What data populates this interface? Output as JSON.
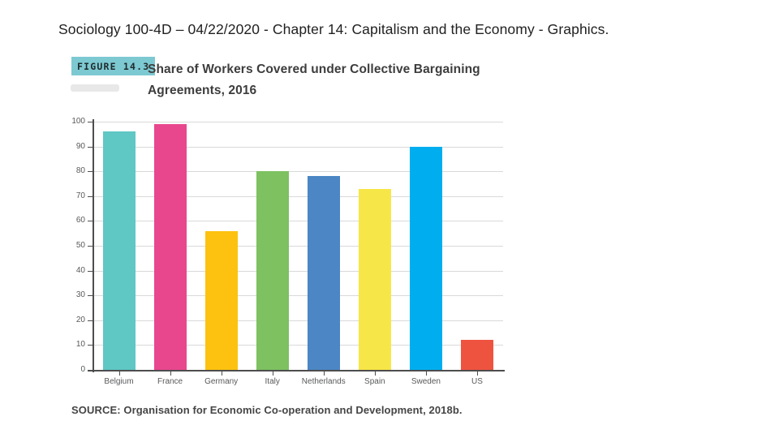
{
  "slide": {
    "title": "Sociology 100-4D – 04/22/2020 - Chapter 14: Capitalism and the Economy - Graphics."
  },
  "figure": {
    "label": "FIGURE 14.3",
    "title_lines": {
      "0": "Share of Workers Covered under Collective Bargaining",
      "1": "Agreements, 2016"
    },
    "source": "SOURCE: Organisation for Economic Co-operation and Development, 2018b."
  },
  "colors": {
    "badge_bg": "#7dc9d2",
    "grid": "#d9d9d9",
    "axis": "#4d4d4d",
    "tick_text": "#58595b"
  },
  "chart_data": {
    "type": "bar",
    "title": "Share of Workers Covered under Collective Bargaining Agreements, 2016",
    "categories": [
      "Belgium",
      "France",
      "Germany",
      "Italy",
      "Netherlands",
      "Spain",
      "Sweden",
      "US"
    ],
    "values": [
      96,
      99,
      56,
      80,
      78,
      73,
      90,
      12
    ],
    "bar_colors": [
      "#5fc7c4",
      "#e8478d",
      "#fdc20f",
      "#7dc161",
      "#4c86c4",
      "#f7e647",
      "#00aeef",
      "#ee5340"
    ],
    "xlabel": "",
    "ylabel": "",
    "ylim": [
      0,
      100
    ],
    "yticks": [
      0,
      10,
      20,
      30,
      40,
      50,
      60,
      70,
      80,
      90,
      100
    ],
    "grid": true,
    "legend": "none"
  }
}
